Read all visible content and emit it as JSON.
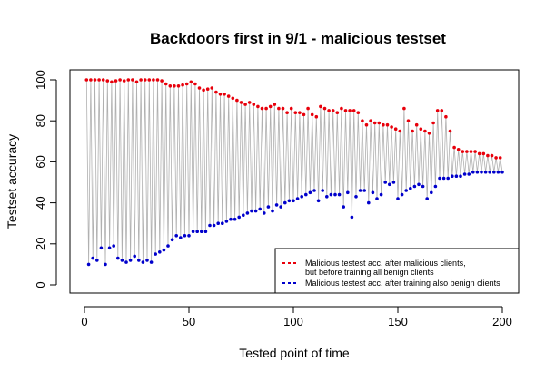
{
  "chart_data": {
    "type": "scatter",
    "title": "Backdoors first in 9/1 - malicious testset",
    "xlabel": "Tested point of time",
    "ylabel": "Testset accuracy",
    "xlim": [
      0,
      200
    ],
    "ylim": [
      0,
      100
    ],
    "xticks": [
      0,
      50,
      100,
      150,
      200
    ],
    "yticks": [
      0,
      20,
      40,
      60,
      80,
      100
    ],
    "grid": false,
    "legend_position": "bottom-right",
    "colors": {
      "malicious": "#e8000b",
      "benign": "#0000cc",
      "connector": "#b0b0b0"
    },
    "legend": [
      "Malicious testest acc. after malicious clients,",
      "but before training all benign clients",
      "Malicious testest acc. after training also benign clients"
    ],
    "series": [
      {
        "key": "malicious",
        "x": [
          1,
          3,
          5,
          7,
          9,
          11,
          13,
          15,
          17,
          19,
          21,
          23,
          25,
          27,
          29,
          31,
          33,
          35,
          37,
          39,
          41,
          43,
          45,
          47,
          49,
          51,
          53,
          55,
          57,
          59,
          61,
          63,
          65,
          67,
          69,
          71,
          73,
          75,
          77,
          79,
          81,
          83,
          85,
          87,
          89,
          91,
          93,
          95,
          97,
          99,
          101,
          103,
          105,
          107,
          109,
          111,
          113,
          115,
          117,
          119,
          121,
          123,
          125,
          127,
          129,
          131,
          133,
          135,
          137,
          139,
          141,
          143,
          145,
          147,
          149,
          151,
          153,
          155,
          157,
          159,
          161,
          163,
          165,
          167,
          169,
          171,
          173,
          175,
          177,
          179,
          181,
          183,
          185,
          187,
          189,
          191,
          193,
          195,
          197,
          199
        ],
        "y": [
          100,
          100,
          100,
          100,
          100,
          99.5,
          99,
          99.5,
          100,
          99.5,
          100,
          100,
          99,
          100,
          100,
          100,
          100,
          100,
          99.5,
          98,
          97,
          97,
          97,
          97.5,
          98,
          99,
          98,
          96,
          95,
          95.5,
          96,
          94,
          93,
          93,
          92,
          91,
          90,
          89,
          88,
          89,
          88,
          87,
          86,
          86,
          87,
          88,
          86,
          86,
          84,
          86,
          84,
          84,
          83,
          86,
          83,
          82,
          87,
          86,
          85,
          85,
          84,
          86,
          85,
          85,
          85,
          84,
          80,
          78,
          80,
          79,
          79,
          78,
          78,
          77,
          76,
          75,
          86,
          80,
          75,
          78,
          76,
          75,
          74,
          79,
          85,
          85,
          82,
          75,
          67,
          66,
          65,
          65,
          65,
          65,
          64,
          64,
          63,
          63,
          62,
          62
        ]
      },
      {
        "key": "benign",
        "x": [
          2,
          4,
          6,
          8,
          10,
          12,
          14,
          16,
          18,
          20,
          22,
          24,
          26,
          28,
          30,
          32,
          34,
          36,
          38,
          40,
          42,
          44,
          46,
          48,
          50,
          52,
          54,
          56,
          58,
          60,
          62,
          64,
          66,
          68,
          70,
          72,
          74,
          76,
          78,
          80,
          82,
          84,
          86,
          88,
          90,
          92,
          94,
          96,
          98,
          100,
          102,
          104,
          106,
          108,
          110,
          112,
          114,
          116,
          118,
          120,
          122,
          124,
          126,
          128,
          130,
          132,
          134,
          136,
          138,
          140,
          142,
          144,
          146,
          148,
          150,
          152,
          154,
          156,
          158,
          160,
          162,
          164,
          166,
          168,
          170,
          172,
          174,
          176,
          178,
          180,
          182,
          184,
          186,
          188,
          190,
          192,
          194,
          196,
          198,
          200
        ],
        "y": [
          10,
          13,
          12,
          18,
          10,
          18,
          19,
          13,
          12,
          11,
          12,
          14,
          12,
          11,
          12,
          11,
          15,
          16,
          17,
          19,
          22,
          24,
          23,
          24,
          24,
          26,
          26,
          26,
          26,
          29,
          29,
          30,
          30,
          31,
          32,
          32,
          33,
          34,
          35,
          36,
          36,
          37,
          35,
          38,
          36,
          39,
          38,
          40,
          41,
          41,
          42,
          43,
          44,
          45,
          46,
          41,
          46,
          43,
          44,
          44,
          44,
          38,
          45,
          33,
          43,
          46,
          46,
          40,
          45,
          42,
          44,
          50,
          49,
          50,
          42,
          44,
          46,
          47,
          48,
          49,
          48,
          42,
          45,
          48,
          52,
          52,
          52,
          53,
          53,
          53,
          54,
          54,
          55,
          55,
          55,
          55,
          55,
          55,
          55,
          55
        ]
      }
    ]
  }
}
